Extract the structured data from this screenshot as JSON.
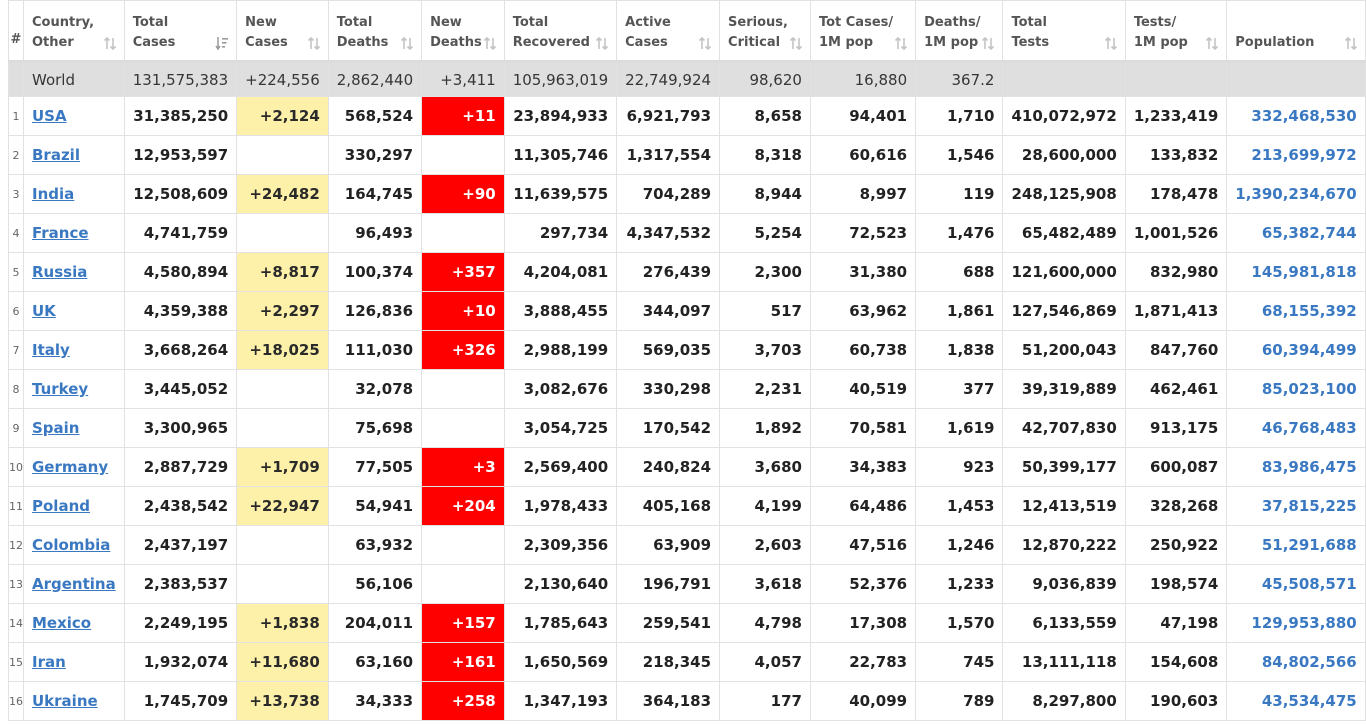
{
  "headers": {
    "idx": "#",
    "country": [
      "Country,",
      "Other"
    ],
    "total_cases": [
      "Total",
      "Cases"
    ],
    "new_cases": [
      "New",
      "Cases"
    ],
    "total_deaths": [
      "Total",
      "Deaths"
    ],
    "new_deaths": [
      "New",
      "Deaths"
    ],
    "total_recovered": [
      "Total",
      "Recovered"
    ],
    "active_cases": [
      "Active",
      "Cases"
    ],
    "serious": [
      "Serious,",
      "Critical"
    ],
    "cases_per_1m": [
      "Tot Cases/",
      "1M pop"
    ],
    "deaths_per_1m": [
      "Deaths/",
      "1M pop"
    ],
    "total_tests": [
      "Total",
      "Tests"
    ],
    "tests_per_1m": [
      "Tests/",
      "1M pop"
    ],
    "population": [
      "Population",
      ""
    ]
  },
  "world": {
    "country": "World",
    "total_cases": "131,575,383",
    "new_cases": "+224,556",
    "total_deaths": "2,862,440",
    "new_deaths": "+3,411",
    "total_recovered": "105,963,019",
    "active_cases": "22,749,924",
    "serious": "98,620",
    "cases_per_1m": "16,880",
    "deaths_per_1m": "367.2",
    "total_tests": "",
    "tests_per_1m": "",
    "population": ""
  },
  "rows": [
    {
      "idx": "1",
      "country": "USA",
      "total_cases": "31,385,250",
      "new_cases": "+2,124",
      "total_deaths": "568,524",
      "new_deaths": "+11",
      "total_recovered": "23,894,933",
      "active_cases": "6,921,793",
      "serious": "8,658",
      "cases_per_1m": "94,401",
      "deaths_per_1m": "1,710",
      "total_tests": "410,072,972",
      "tests_per_1m": "1,233,419",
      "population": "332,468,530"
    },
    {
      "idx": "2",
      "country": "Brazil",
      "total_cases": "12,953,597",
      "new_cases": "",
      "total_deaths": "330,297",
      "new_deaths": "",
      "total_recovered": "11,305,746",
      "active_cases": "1,317,554",
      "serious": "8,318",
      "cases_per_1m": "60,616",
      "deaths_per_1m": "1,546",
      "total_tests": "28,600,000",
      "tests_per_1m": "133,832",
      "population": "213,699,972"
    },
    {
      "idx": "3",
      "country": "India",
      "total_cases": "12,508,609",
      "new_cases": "+24,482",
      "total_deaths": "164,745",
      "new_deaths": "+90",
      "total_recovered": "11,639,575",
      "active_cases": "704,289",
      "serious": "8,944",
      "cases_per_1m": "8,997",
      "deaths_per_1m": "119",
      "total_tests": "248,125,908",
      "tests_per_1m": "178,478",
      "population": "1,390,234,670"
    },
    {
      "idx": "4",
      "country": "France",
      "total_cases": "4,741,759",
      "new_cases": "",
      "total_deaths": "96,493",
      "new_deaths": "",
      "total_recovered": "297,734",
      "active_cases": "4,347,532",
      "serious": "5,254",
      "cases_per_1m": "72,523",
      "deaths_per_1m": "1,476",
      "total_tests": "65,482,489",
      "tests_per_1m": "1,001,526",
      "population": "65,382,744"
    },
    {
      "idx": "5",
      "country": "Russia",
      "total_cases": "4,580,894",
      "new_cases": "+8,817",
      "total_deaths": "100,374",
      "new_deaths": "+357",
      "total_recovered": "4,204,081",
      "active_cases": "276,439",
      "serious": "2,300",
      "cases_per_1m": "31,380",
      "deaths_per_1m": "688",
      "total_tests": "121,600,000",
      "tests_per_1m": "832,980",
      "population": "145,981,818"
    },
    {
      "idx": "6",
      "country": "UK",
      "total_cases": "4,359,388",
      "new_cases": "+2,297",
      "total_deaths": "126,836",
      "new_deaths": "+10",
      "total_recovered": "3,888,455",
      "active_cases": "344,097",
      "serious": "517",
      "cases_per_1m": "63,962",
      "deaths_per_1m": "1,861",
      "total_tests": "127,546,869",
      "tests_per_1m": "1,871,413",
      "population": "68,155,392"
    },
    {
      "idx": "7",
      "country": "Italy",
      "total_cases": "3,668,264",
      "new_cases": "+18,025",
      "total_deaths": "111,030",
      "new_deaths": "+326",
      "total_recovered": "2,988,199",
      "active_cases": "569,035",
      "serious": "3,703",
      "cases_per_1m": "60,738",
      "deaths_per_1m": "1,838",
      "total_tests": "51,200,043",
      "tests_per_1m": "847,760",
      "population": "60,394,499"
    },
    {
      "idx": "8",
      "country": "Turkey",
      "total_cases": "3,445,052",
      "new_cases": "",
      "total_deaths": "32,078",
      "new_deaths": "",
      "total_recovered": "3,082,676",
      "active_cases": "330,298",
      "serious": "2,231",
      "cases_per_1m": "40,519",
      "deaths_per_1m": "377",
      "total_tests": "39,319,889",
      "tests_per_1m": "462,461",
      "population": "85,023,100"
    },
    {
      "idx": "9",
      "country": "Spain",
      "total_cases": "3,300,965",
      "new_cases": "",
      "total_deaths": "75,698",
      "new_deaths": "",
      "total_recovered": "3,054,725",
      "active_cases": "170,542",
      "serious": "1,892",
      "cases_per_1m": "70,581",
      "deaths_per_1m": "1,619",
      "total_tests": "42,707,830",
      "tests_per_1m": "913,175",
      "population": "46,768,483"
    },
    {
      "idx": "10",
      "country": "Germany",
      "total_cases": "2,887,729",
      "new_cases": "+1,709",
      "total_deaths": "77,505",
      "new_deaths": "+3",
      "total_recovered": "2,569,400",
      "active_cases": "240,824",
      "serious": "3,680",
      "cases_per_1m": "34,383",
      "deaths_per_1m": "923",
      "total_tests": "50,399,177",
      "tests_per_1m": "600,087",
      "population": "83,986,475"
    },
    {
      "idx": "11",
      "country": "Poland",
      "total_cases": "2,438,542",
      "new_cases": "+22,947",
      "total_deaths": "54,941",
      "new_deaths": "+204",
      "total_recovered": "1,978,433",
      "active_cases": "405,168",
      "serious": "4,199",
      "cases_per_1m": "64,486",
      "deaths_per_1m": "1,453",
      "total_tests": "12,413,519",
      "tests_per_1m": "328,268",
      "population": "37,815,225"
    },
    {
      "idx": "12",
      "country": "Colombia",
      "total_cases": "2,437,197",
      "new_cases": "",
      "total_deaths": "63,932",
      "new_deaths": "",
      "total_recovered": "2,309,356",
      "active_cases": "63,909",
      "serious": "2,603",
      "cases_per_1m": "47,516",
      "deaths_per_1m": "1,246",
      "total_tests": "12,870,222",
      "tests_per_1m": "250,922",
      "population": "51,291,688"
    },
    {
      "idx": "13",
      "country": "Argentina",
      "total_cases": "2,383,537",
      "new_cases": "",
      "total_deaths": "56,106",
      "new_deaths": "",
      "total_recovered": "2,130,640",
      "active_cases": "196,791",
      "serious": "3,618",
      "cases_per_1m": "52,376",
      "deaths_per_1m": "1,233",
      "total_tests": "9,036,839",
      "tests_per_1m": "198,574",
      "population": "45,508,571"
    },
    {
      "idx": "14",
      "country": "Mexico",
      "total_cases": "2,249,195",
      "new_cases": "+1,838",
      "total_deaths": "204,011",
      "new_deaths": "+157",
      "total_recovered": "1,785,643",
      "active_cases": "259,541",
      "serious": "4,798",
      "cases_per_1m": "17,308",
      "deaths_per_1m": "1,570",
      "total_tests": "6,133,559",
      "tests_per_1m": "47,198",
      "population": "129,953,880"
    },
    {
      "idx": "15",
      "country": "Iran",
      "total_cases": "1,932,074",
      "new_cases": "+11,680",
      "total_deaths": "63,160",
      "new_deaths": "+161",
      "total_recovered": "1,650,569",
      "active_cases": "218,345",
      "serious": "4,057",
      "cases_per_1m": "22,783",
      "deaths_per_1m": "745",
      "total_tests": "13,111,118",
      "tests_per_1m": "154,608",
      "population": "84,802,566"
    },
    {
      "idx": "16",
      "country": "Ukraine",
      "total_cases": "1,745,709",
      "new_cases": "+13,738",
      "total_deaths": "34,333",
      "new_deaths": "+258",
      "total_recovered": "1,347,193",
      "active_cases": "364,183",
      "serious": "177",
      "cases_per_1m": "40,099",
      "deaths_per_1m": "789",
      "total_tests": "8,297,800",
      "tests_per_1m": "190,603",
      "population": "43,534,475"
    }
  ],
  "colors": {
    "link": "#3a79c2",
    "new_cases_bg": "#fdf0a8",
    "new_deaths_bg": "#ff0000",
    "world_row_bg": "#dfdfdf"
  },
  "icons": {
    "sort": "sort-arrows-icon",
    "sort_active": "sort-descending-icon"
  }
}
